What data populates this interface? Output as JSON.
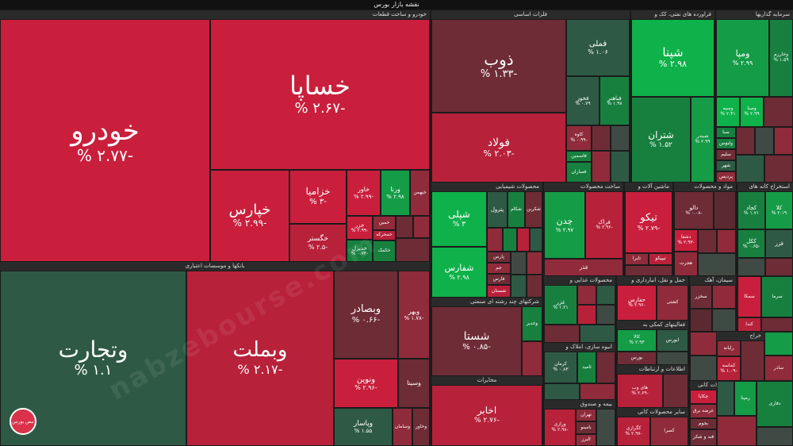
{
  "title": "نقشه بازار بورس",
  "watermark_text": "nabzebourse.com",
  "logo_text": "نبض بورس",
  "sections": {
    "khodro": "خودرو و ساخت قطعات",
    "felezat": "فلزات اساسی",
    "pala": "فراورده های نفتی، کک و",
    "sarmaye": "سرمایه گذاریها",
    "bank": "بانکها و موسسات اعتباری",
    "shimi": "محصولات شیمیایی",
    "sakhtmani": "ساخت محصولات",
    "mashin": "ماشین آلات و",
    "mavad": "مواد و محصولات",
    "estekhraj": "استخراج کانه های",
    "chand": "شرکتهای چند رشته ای صنعتی",
    "ghazayi": "محصولات غذایی و",
    "haml": "حمل و نقل، انبارداری و",
    "siman": "سیمان، آهک",
    "kani": "محصولات کانی",
    "mokhaberat": "مخابرات",
    "faaliat": "فعالیتهای کمکی به",
    "anbooh": "انبوه سازی، املاک و",
    "etelaat": "اطلاعات و ارتباطات",
    "bime": "بیمه و صندوق",
    "kaghazi": "محصولات کاغذی",
    "sayer": "سایر محصولات کانی",
    "khorde": "خراج"
  },
  "tiles": {
    "khodro": {
      "n": "خودرو",
      "v": "-۲.۷۷ %"
    },
    "khapa": {
      "n": "خساپا",
      "v": "-۲.۶۷ %"
    },
    "khepars": {
      "n": "خپارس",
      "v": "-۲.۹۹ %"
    },
    "khazamia": {
      "n": "خزامیا",
      "v": "-۳ %"
    },
    "khegostar": {
      "n": "خگستر",
      "v": "-۲.۵ %"
    },
    "khavar": {
      "n": "خاور",
      "v": "-۲.۹۹ %"
    },
    "vorna": {
      "n": "ورنا",
      "v": "۲.۹۸ %"
    },
    "khebahman": {
      "n": "خبهمن"
    },
    "khazar": {
      "n": "خزر",
      "v": "-۲.۹۹ %"
    },
    "khemehrkeh": {
      "n": "خمحرکه"
    },
    "khodiz": {
      "n": "خدیزل",
      "v": "-۰.۷۴ %"
    },
    "khakamak": {
      "n": "خکمک"
    },
    "khamin": {
      "n": "خمین"
    },
    "vetejarat": {
      "n": "وتجارت",
      "v": "۱.۱ %"
    },
    "vebmelat": {
      "n": "وبملت",
      "v": "-۲.۱۷ %"
    },
    "vebsader": {
      "n": "وبصادر",
      "v": "-۰.۶۶ %"
    },
    "vaber": {
      "n": "وبهر",
      "v": "-۱.۷۸ %"
    },
    "vonovin": {
      "n": "ونوین",
      "v": "-۲.۹۶ %"
    },
    "vsina": {
      "n": "وسینا"
    },
    "vpasar": {
      "n": "وپاسار",
      "v": "۱.۵۵ %"
    },
    "vsaman": {
      "n": "وسامان"
    },
    "vkhavar": {
      "n": "وخاور"
    },
    "zob": {
      "n": "ذوب",
      "v": "-۱.۳۳ %"
    },
    "fameli": {
      "n": "فملی",
      "v": "۱.۰۶ %"
    },
    "fooolad": {
      "n": "فولاد",
      "v": "-۲.۰۳ %"
    },
    "fkhoz": {
      "n": "فخوز",
      "v": "۰.۷۹ %"
    },
    "fbahonar": {
      "n": "فباهنر",
      "v": "۱.۹۸ %"
    },
    "kave": {
      "n": "کاوه",
      "v": "-۰.۹۹ %"
    },
    "fameni": {
      "n": "فاسمین"
    },
    "fsazan": {
      "n": "فسازان"
    },
    "shepna": {
      "n": "شپنا",
      "v": "۲.۹۸ %"
    },
    "shetran": {
      "n": "شتران",
      "v": "۱.۵۲ %"
    },
    "shabandar": {
      "n": "شبندر",
      "v": "۲.۹۹ %"
    },
    "vempa": {
      "n": "ومپا",
      "v": "۲.۹۹ %"
    },
    "vkharazm": {
      "n": "وخارزم",
      "v": "۱.۵۹ %"
    },
    "vesepeh": {
      "n": "وسپه",
      "v": "۲.۴۱ %"
    },
    "vesna": {
      "n": "وصنا",
      "v": "۲.۹۹ %"
    },
    "sepa": {
      "n": "صبا"
    },
    "valtoos": {
      "n": "ولتوس"
    },
    "salim": {
      "n": "سلیم"
    },
    "shahr": {
      "n": "شهر"
    },
    "pardis": {
      "n": "پردیس"
    },
    "shepli": {
      "n": "شپلی",
      "v": "۳ %"
    },
    "shepetrol": {
      "n": "پترول"
    },
    "shekam": {
      "n": "شکام"
    },
    "shakarbon": {
      "n": "شکربن"
    },
    "shefaras": {
      "n": "شفارس",
      "v": "۲.۹۸ %"
    },
    "pars": {
      "n": "پارس"
    },
    "fars": {
      "n": "فارس"
    },
    "jam": {
      "n": "جم"
    },
    "shestan": {
      "n": "شستان"
    },
    "chadan": {
      "n": "چدن",
      "v": "۲.۹۷ %"
    },
    "faraak": {
      "n": "فراک",
      "v": "-۲.۹۶ %"
    },
    "fazar": {
      "n": "فذر"
    },
    "tiko": {
      "n": "تیکو",
      "v": "-۲.۷۹ %"
    },
    "tayra": {
      "n": "تایرا"
    },
    "tipikoo": {
      "n": "تیپیکو"
    },
    "dalo": {
      "n": "دالو",
      "v": "-۰.۰۸ %"
    },
    "dashaa": {
      "n": "دشفا",
      "v": "-۲.۹۳ %"
    },
    "hojrat": {
      "n": "هجرت"
    },
    "kachad": {
      "n": "کچاد",
      "v": "۱.۷۱ %"
    },
    "kala": {
      "n": "کلا",
      "v": "۲.۱۹ %"
    },
    "kakal": {
      "n": "ککل",
      "v": "-۰.۶۵ %"
    },
    "fezar": {
      "n": "فزر"
    },
    "kama": {
      "n": "کما"
    },
    "shasta": {
      "n": "شستا",
      "v": "-۰.۸۵ %"
    },
    "vghadir": {
      "n": "وغدیر"
    },
    "ghazar": {
      "n": "غزر",
      "v": "۱.۲۱ %"
    },
    "hafar": {
      "n": "حفارس",
      "v": "-۲.۹۶ %"
    },
    "keshti": {
      "n": "کشتی"
    },
    "sakhtor": {
      "n": "سخزر"
    },
    "semaka": {
      "n": "سمکا"
    },
    "serma": {
      "n": "سرما"
    },
    "kanda": {
      "n": "کندا"
    },
    "akhabar": {
      "n": "اخابر",
      "v": "-۲.۷۶ %"
    },
    "kalla": {
      "n": "کالا",
      "v": "۲.۹۳ %"
    },
    "aboors": {
      "n": "ابورس"
    },
    "boors": {
      "n": "بورس"
    },
    "kerman": {
      "n": "کرمان",
      "v": "۰.۸۳ %"
    },
    "sekhab": {
      "n": "ثامید"
    },
    "hay": {
      "n": "های وب",
      "v": "-۲.۶۹ %"
    },
    "chakapa": {
      "n": "چکاپا"
    },
    "verazi": {
      "n": "ورازی",
      "v": "-۲.۹۸ %"
    },
    "tehran": {
      "n": "تهران"
    },
    "baminoo": {
      "n": "بامینو"
    },
    "varz": {
      "n": "البرز"
    },
    "kgarazi": {
      "n": "کگرازی",
      "v": "-۲.۹۷ %"
    },
    "kasra": {
      "n": "کسرا"
    },
    "arzeh": {
      "n": "عرضه برق"
    },
    "bajom": {
      "n": "بجوم"
    },
    "ghand": {
      "n": "قند و شکر"
    },
    "rampna": {
      "n": "رمپنا"
    },
    "dafari": {
      "n": "دفاری"
    },
    "rayane": {
      "n": "رایانه"
    },
    "kamase": {
      "n": "کماسه",
      "v": "-۱.۰۹ %"
    },
    "dzaa": {
      "n": "ساذر"
    }
  }
}
